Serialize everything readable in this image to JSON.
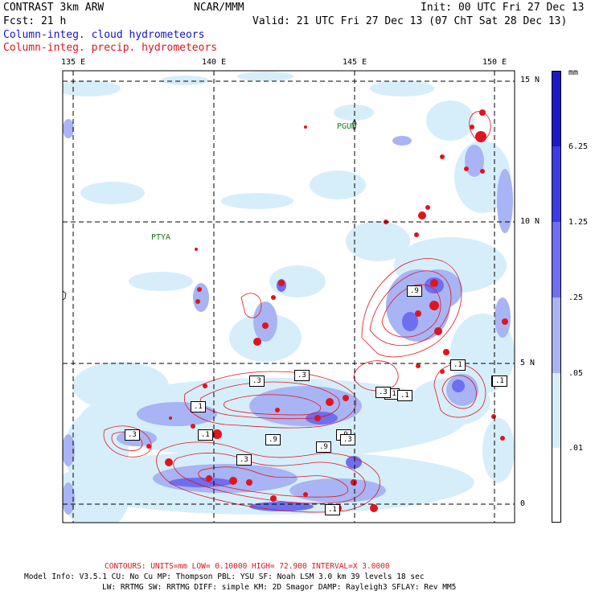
{
  "header": {
    "model": "CONTRAST  3km ARW",
    "org": "NCAR/MMM",
    "init": "Init: 00 UTC Fri 27 Dec 13",
    "fcst": "Fcst:   21 h",
    "valid": "Valid: 21 UTC Fri 27 Dec 13 (07 ChT Sat 28 Dec 13)",
    "field_cloud": "Column-integ. cloud hydrometeors",
    "field_precip": "Column-integ. precip. hydrometeors"
  },
  "map": {
    "lon_labels": [
      "135 E",
      "140 E",
      "145 E",
      "150 E"
    ],
    "lat_labels": [
      "15 N",
      "10 N",
      "5 N",
      "0"
    ],
    "place_labels": [
      "PGUM",
      "PTYA"
    ],
    "contour_labels": [
      ".9",
      ".1",
      ".3",
      ".1",
      ".1",
      ".3",
      ".3",
      ".1",
      ".3",
      ".1",
      ".3",
      ".9",
      ".9",
      ".9",
      ".3",
      ".3",
      ".1",
      ".1"
    ]
  },
  "colorbar": {
    "unit": "mm",
    "labels": [
      "6.25",
      "1.25",
      ".25",
      ".05",
      ".01"
    ],
    "colors": [
      "#1a1ac8",
      "#3c3ce6",
      "#6e6ef0",
      "#a8b4f4",
      "#d6eefa",
      "#ffffff"
    ]
  },
  "footer": {
    "contours": "CONTOURS:  UNITS=mm  LOW= 0.10000      HIGH=  72.900      INTERVAL=X  3.0000",
    "model_info": "Model Info: V3.5.1     CU: No Cu      MP: Thompson     PBL: YSU       SF: Noah LSM      3.0 km   39 levels    18 sec",
    "model_info2": "LW: RRTMG    SW: RRTMG   DIFF: simple KM: 2D Smagor DAMP: Rayleigh3   SFLAY: Rev MM5"
  }
}
